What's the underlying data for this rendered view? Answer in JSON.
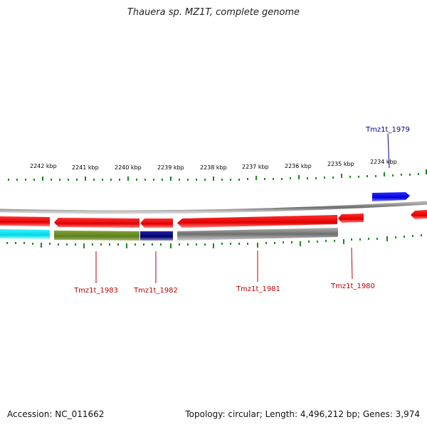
{
  "title": "Thauera sp. MZ1T, complete genome",
  "footer": {
    "accession": "Accession: NC_011662",
    "summary": "Topology: circular; Length: 4,496,212 bp; Genes: 3,974"
  },
  "scale_labels": [
    "2242 kbp",
    "2241 kbp",
    "2240 kbp",
    "2239 kbp",
    "2238 kbp",
    "2237 kbp",
    "2236 kbp",
    "2235 kbp",
    "2234 kbp"
  ],
  "genes": [
    {
      "name": "Tmz1t_1983",
      "color": "#c00000"
    },
    {
      "name": "Tmz1t_1982",
      "color": "#c00000"
    },
    {
      "name": "Tmz1t_1981",
      "color": "#c00000"
    },
    {
      "name": "Tmz1t_1980",
      "color": "#c00000"
    },
    {
      "name": "Tmz1t_1979",
      "color": "#000099"
    }
  ],
  "colors": {
    "backbone": "#808080",
    "cds_reverse": "#ff0000",
    "cds_forward": "#0000ee",
    "tick": "#1a8a1a",
    "cog_cyan": "#00e5ee",
    "cog_olive": "#6b8e23",
    "cog_navy": "#000080",
    "cog_gray": "#696969"
  }
}
